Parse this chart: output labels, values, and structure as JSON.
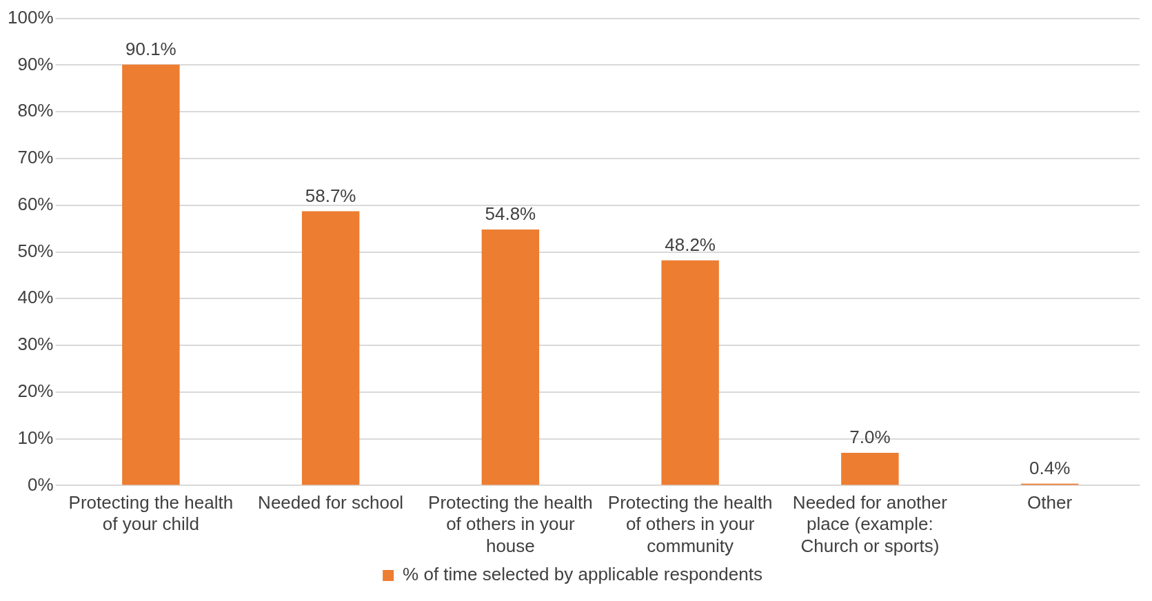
{
  "chart_data": {
    "type": "bar",
    "categories": [
      "Protecting the health of your child",
      "Needed for school",
      "Protecting the health of others in your house",
      "Protecting the health of others in your community",
      "Needed for another place (example: Church or sports)",
      "Other"
    ],
    "series": [
      {
        "name": "% of time selected by applicable respondents",
        "color": "#ed7d31",
        "values": [
          90.1,
          58.7,
          54.8,
          48.2,
          7.0,
          0.4
        ],
        "value_labels": [
          "90.1%",
          "58.7%",
          "54.8%",
          "48.2%",
          "7.0%",
          "0.4%"
        ]
      }
    ],
    "ylim": [
      0,
      100
    ],
    "yticks": [
      {
        "value": 0,
        "label": "0%"
      },
      {
        "value": 10,
        "label": "10%"
      },
      {
        "value": 20,
        "label": "20%"
      },
      {
        "value": 30,
        "label": "30%"
      },
      {
        "value": 40,
        "label": "40%"
      },
      {
        "value": 50,
        "label": "50%"
      },
      {
        "value": 60,
        "label": "60%"
      },
      {
        "value": 70,
        "label": "70%"
      },
      {
        "value": 80,
        "label": "80%"
      },
      {
        "value": 90,
        "label": "90%"
      },
      {
        "value": 100,
        "label": "100%"
      }
    ],
    "grid": "y",
    "legend": "bottom"
  }
}
